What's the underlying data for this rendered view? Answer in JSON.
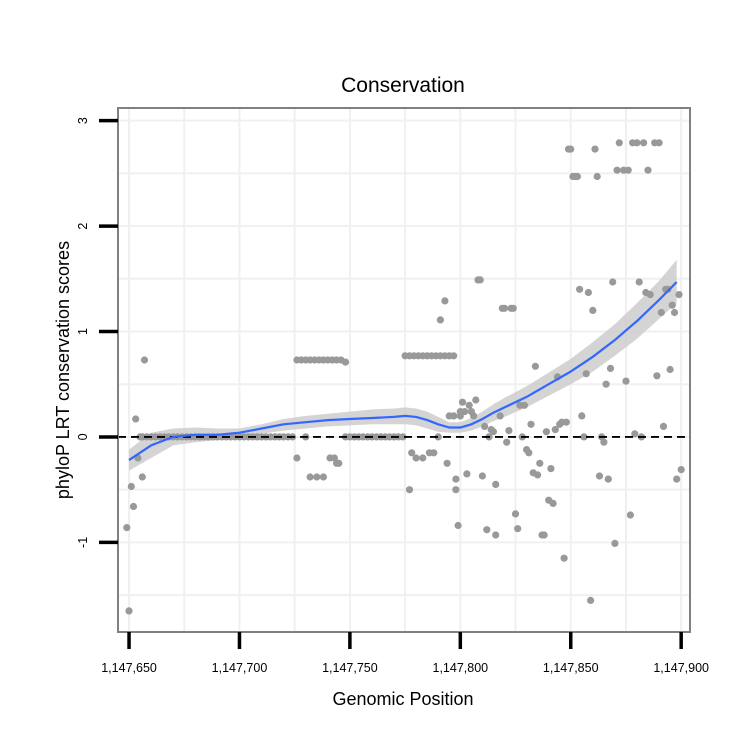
{
  "chart_data": {
    "type": "scatter",
    "title": "Conservation",
    "xlabel": "Genomic Position",
    "ylabel": "phyloP LRT conservation scores",
    "xlim": [
      1147645,
      1147904
    ],
    "ylim": [
      -1.85,
      3.12
    ],
    "x_ticks": [
      1147650,
      1147700,
      1147750,
      1147800,
      1147850,
      1147900
    ],
    "x_tick_labels": [
      "1,147,650",
      "1,147,700",
      "1,147,750",
      "1,147,800",
      "1,147,850",
      "1,147,900"
    ],
    "y_ticks": [
      -1,
      0,
      1,
      2,
      3
    ],
    "y_tick_labels": [
      "-1",
      "0",
      "1",
      "2",
      "3"
    ],
    "reference_line": {
      "y": 0,
      "style": "dashed"
    },
    "grid": true,
    "colors": {
      "points": "#999999",
      "smooth": "#3366ff",
      "ribbon": "#cccccc",
      "grid": "#f0f0f0",
      "border": "#808080",
      "reference": "#000000"
    },
    "series": [
      {
        "name": "scores",
        "points": [
          [
            1147649,
            -0.86
          ],
          [
            1147650,
            -1.65
          ],
          [
            1147651,
            -0.47
          ],
          [
            1147652,
            -0.66
          ],
          [
            1147653,
            0.17
          ],
          [
            1147654,
            -0.2
          ],
          [
            1147655,
            0
          ],
          [
            1147656,
            -0.38
          ],
          [
            1147657,
            0.73
          ],
          [
            1147656,
            0
          ],
          [
            1147658,
            0
          ],
          [
            1147660,
            0
          ],
          [
            1147662,
            0
          ],
          [
            1147664,
            0
          ],
          [
            1147666,
            0
          ],
          [
            1147668,
            0
          ],
          [
            1147670,
            0
          ],
          [
            1147672,
            0
          ],
          [
            1147674,
            0
          ],
          [
            1147676,
            0
          ],
          [
            1147678,
            0
          ],
          [
            1147680,
            0
          ],
          [
            1147682,
            0
          ],
          [
            1147684,
            0
          ],
          [
            1147686,
            0
          ],
          [
            1147688,
            0
          ],
          [
            1147690,
            0
          ],
          [
            1147692,
            0
          ],
          [
            1147694,
            0
          ],
          [
            1147696,
            0
          ],
          [
            1147698,
            0
          ],
          [
            1147700,
            0
          ],
          [
            1147702,
            0
          ],
          [
            1147704,
            0
          ],
          [
            1147706,
            0
          ],
          [
            1147708,
            0
          ],
          [
            1147710,
            0
          ],
          [
            1147712,
            0
          ],
          [
            1147714,
            0
          ],
          [
            1147716,
            0
          ],
          [
            1147718,
            0
          ],
          [
            1147720,
            0
          ],
          [
            1147722,
            0
          ],
          [
            1147724,
            0
          ],
          [
            1147726,
            -0.2
          ],
          [
            1147726,
            0.73
          ],
          [
            1147728,
            0.73
          ],
          [
            1147730,
            0.73
          ],
          [
            1147732,
            0.73
          ],
          [
            1147734,
            0.73
          ],
          [
            1147736,
            0.73
          ],
          [
            1147738,
            0.73
          ],
          [
            1147740,
            0.73
          ],
          [
            1147742,
            0.73
          ],
          [
            1147744,
            0.73
          ],
          [
            1147746,
            0.73
          ],
          [
            1147748,
            0.71
          ],
          [
            1147730,
            0
          ],
          [
            1147732,
            -0.38
          ],
          [
            1147735,
            -0.38
          ],
          [
            1147738,
            -0.38
          ],
          [
            1147741,
            -0.2
          ],
          [
            1147743,
            -0.2
          ],
          [
            1147744,
            -0.25
          ],
          [
            1147745,
            -0.25
          ],
          [
            1147748,
            0
          ],
          [
            1147750,
            0
          ],
          [
            1147752,
            0
          ],
          [
            1147754,
            0
          ],
          [
            1147756,
            0
          ],
          [
            1147758,
            0
          ],
          [
            1147760,
            0
          ],
          [
            1147762,
            0
          ],
          [
            1147764,
            0
          ],
          [
            1147766,
            0
          ],
          [
            1147768,
            0
          ],
          [
            1147770,
            0
          ],
          [
            1147772,
            0
          ],
          [
            1147774,
            0
          ],
          [
            1147775,
            0.77
          ],
          [
            1147777,
            0.77
          ],
          [
            1147779,
            0.77
          ],
          [
            1147781,
            0.77
          ],
          [
            1147783,
            0.77
          ],
          [
            1147785,
            0.77
          ],
          [
            1147787,
            0.77
          ],
          [
            1147789,
            0.77
          ],
          [
            1147791,
            0.77
          ],
          [
            1147793,
            0.77
          ],
          [
            1147795,
            0.77
          ],
          [
            1147797,
            0.77
          ],
          [
            1147777,
            -0.5
          ],
          [
            1147778,
            -0.15
          ],
          [
            1147780,
            -0.2
          ],
          [
            1147783,
            -0.2
          ],
          [
            1147786,
            -0.15
          ],
          [
            1147788,
            -0.15
          ],
          [
            1147790,
            0
          ],
          [
            1147791,
            1.11
          ],
          [
            1147793,
            1.29
          ],
          [
            1147794,
            -0.25
          ],
          [
            1147795,
            0.2
          ],
          [
            1147797,
            0.2
          ],
          [
            1147798,
            -0.4
          ],
          [
            1147798,
            -0.5
          ],
          [
            1147799,
            -0.84
          ],
          [
            1147800,
            0.2
          ],
          [
            1147800,
            0.24
          ],
          [
            1147801,
            0.33
          ],
          [
            1147802,
            0.24
          ],
          [
            1147803,
            -0.35
          ],
          [
            1147804,
            0.3
          ],
          [
            1147805,
            0.24
          ],
          [
            1147806,
            0.2
          ],
          [
            1147807,
            0.35
          ],
          [
            1147808,
            1.49
          ],
          [
            1147809,
            1.49
          ],
          [
            1147810,
            -0.37
          ],
          [
            1147811,
            0.1
          ],
          [
            1147812,
            -0.88
          ],
          [
            1147813,
            0
          ],
          [
            1147814,
            0.07
          ],
          [
            1147815,
            0.05
          ],
          [
            1147816,
            -0.45
          ],
          [
            1147816,
            -0.93
          ],
          [
            1147818,
            0.2
          ],
          [
            1147819,
            1.22
          ],
          [
            1147820,
            1.22
          ],
          [
            1147821,
            -0.05
          ],
          [
            1147822,
            0.06
          ],
          [
            1147823,
            1.22
          ],
          [
            1147824,
            1.22
          ],
          [
            1147825,
            -0.73
          ],
          [
            1147826,
            -0.87
          ],
          [
            1147827,
            0.3
          ],
          [
            1147828,
            0
          ],
          [
            1147829,
            0.3
          ],
          [
            1147830,
            -0.12
          ],
          [
            1147831,
            -0.15
          ],
          [
            1147832,
            0.12
          ],
          [
            1147833,
            -0.34
          ],
          [
            1147834,
            0.67
          ],
          [
            1147835,
            -0.36
          ],
          [
            1147836,
            -0.25
          ],
          [
            1147837,
            -0.93
          ],
          [
            1147838,
            -0.93
          ],
          [
            1147839,
            0.05
          ],
          [
            1147840,
            -0.6
          ],
          [
            1147841,
            -0.3
          ],
          [
            1147842,
            -0.63
          ],
          [
            1147843,
            0.07
          ],
          [
            1147844,
            0.57
          ],
          [
            1147845,
            0.12
          ],
          [
            1147846,
            0.14
          ],
          [
            1147847,
            -1.15
          ],
          [
            1147848,
            0.14
          ],
          [
            1147849,
            2.73
          ],
          [
            1147850,
            2.73
          ],
          [
            1147851,
            2.47
          ],
          [
            1147852,
            2.47
          ],
          [
            1147853,
            2.47
          ],
          [
            1147854,
            1.4
          ],
          [
            1147855,
            0.2
          ],
          [
            1147856,
            0
          ],
          [
            1147857,
            0.6
          ],
          [
            1147858,
            1.37
          ],
          [
            1147859,
            -1.55
          ],
          [
            1147860,
            1.2
          ],
          [
            1147861,
            2.73
          ],
          [
            1147862,
            2.47
          ],
          [
            1147863,
            -0.37
          ],
          [
            1147864,
            0
          ],
          [
            1147865,
            -0.05
          ],
          [
            1147866,
            0.5
          ],
          [
            1147867,
            -0.4
          ],
          [
            1147868,
            0.65
          ],
          [
            1147869,
            1.47
          ],
          [
            1147870,
            -1.01
          ],
          [
            1147871,
            2.53
          ],
          [
            1147872,
            2.79
          ],
          [
            1147874,
            2.53
          ],
          [
            1147875,
            0.53
          ],
          [
            1147876,
            2.53
          ],
          [
            1147877,
            -0.74
          ],
          [
            1147878,
            2.79
          ],
          [
            1147879,
            0.03
          ],
          [
            1147880,
            2.79
          ],
          [
            1147881,
            1.47
          ],
          [
            1147882,
            0
          ],
          [
            1147883,
            2.79
          ],
          [
            1147884,
            1.37
          ],
          [
            1147885,
            2.53
          ],
          [
            1147886,
            1.35
          ],
          [
            1147888,
            2.79
          ],
          [
            1147889,
            0.58
          ],
          [
            1147890,
            2.79
          ],
          [
            1147891,
            1.18
          ],
          [
            1147892,
            0.1
          ],
          [
            1147893,
            1.4
          ],
          [
            1147894,
            1.4
          ],
          [
            1147895,
            0.64
          ],
          [
            1147896,
            1.25
          ],
          [
            1147897,
            1.18
          ],
          [
            1147898,
            -0.4
          ],
          [
            1147899,
            1.35
          ],
          [
            1147900,
            -0.31
          ]
        ]
      }
    ],
    "smooth": {
      "x": [
        1147650,
        1147660,
        1147670,
        1147680,
        1147690,
        1147700,
        1147710,
        1147720,
        1147730,
        1147740,
        1147750,
        1147760,
        1147770,
        1147775,
        1147780,
        1147785,
        1147790,
        1147795,
        1147800,
        1147805,
        1147810,
        1147815,
        1147820,
        1147830,
        1147840,
        1147850,
        1147860,
        1147870,
        1147880,
        1147890,
        1147898
      ],
      "y": [
        -0.22,
        -0.08,
        0.0,
        0.02,
        0.02,
        0.04,
        0.08,
        0.12,
        0.14,
        0.16,
        0.17,
        0.18,
        0.19,
        0.2,
        0.19,
        0.16,
        0.12,
        0.09,
        0.09,
        0.12,
        0.17,
        0.23,
        0.28,
        0.38,
        0.5,
        0.62,
        0.76,
        0.92,
        1.1,
        1.3,
        1.47
      ],
      "lower": [
        -0.32,
        -0.2,
        -0.08,
        -0.05,
        -0.03,
        0.0,
        0.03,
        0.06,
        0.08,
        0.1,
        0.11,
        0.12,
        0.12,
        0.12,
        0.11,
        0.08,
        0.05,
        0.04,
        0.04,
        0.06,
        0.1,
        0.15,
        0.19,
        0.28,
        0.39,
        0.5,
        0.62,
        0.77,
        0.93,
        1.12,
        1.27
      ],
      "upper": [
        -0.12,
        0.04,
        0.08,
        0.09,
        0.08,
        0.08,
        0.12,
        0.17,
        0.2,
        0.22,
        0.24,
        0.26,
        0.27,
        0.28,
        0.27,
        0.24,
        0.19,
        0.14,
        0.14,
        0.18,
        0.24,
        0.31,
        0.37,
        0.48,
        0.61,
        0.74,
        0.9,
        1.07,
        1.27,
        1.48,
        1.68
      ]
    }
  }
}
